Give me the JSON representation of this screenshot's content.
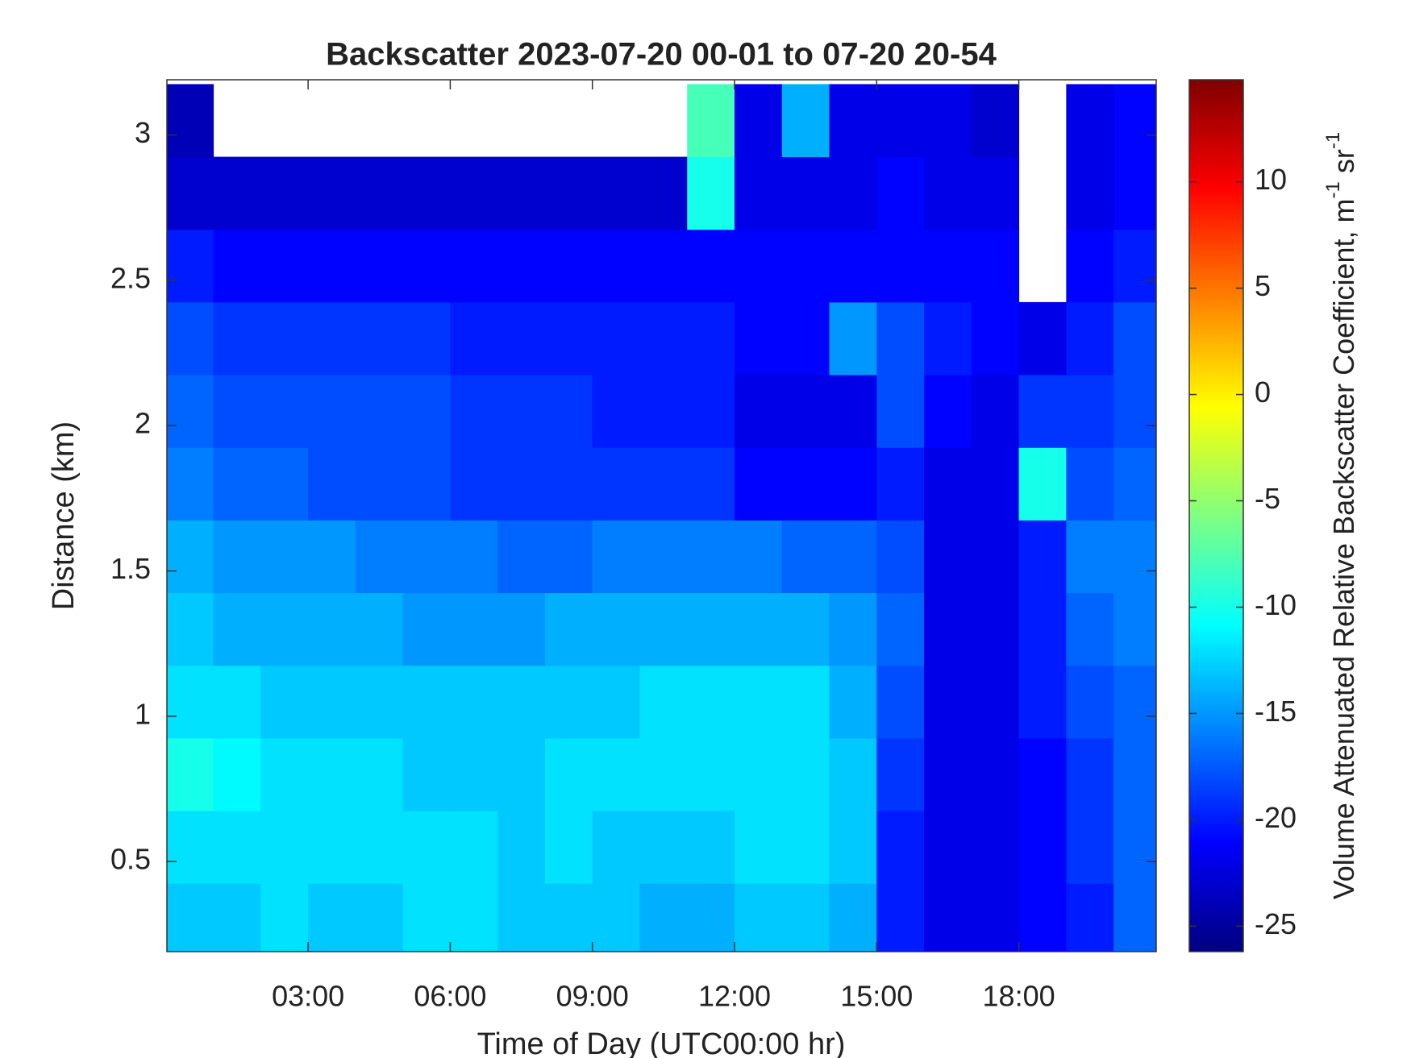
{
  "chart_data": {
    "type": "heatmap",
    "title": "Backscatter 2023-07-20 00-01 to 07-20 20-54",
    "x_label": "Time of Day (UTC00:00 hr)",
    "y_label": "Distance (km)",
    "colorbar_label": [
      "Volume Attenuated Relative Backscatter Coefficient, m",
      "-1",
      " sr",
      "-1"
    ],
    "colormap": "jet",
    "xlim": [
      0.02,
      20.9
    ],
    "ylim": [
      0.19,
      3.19
    ],
    "clim": [
      -26.2,
      14.8
    ],
    "xticks": [
      {
        "value": 3,
        "label": "03:00"
      },
      {
        "value": 6,
        "label": "06:00"
      },
      {
        "value": 9,
        "label": "09:00"
      },
      {
        "value": 12,
        "label": "12:00"
      },
      {
        "value": 15,
        "label": "15:00"
      },
      {
        "value": 18,
        "label": "18:00"
      }
    ],
    "yticks": [
      0.5,
      1,
      1.5,
      2,
      2.5,
      3
    ],
    "cticks": [
      -25,
      -20,
      -15,
      -10,
      -5,
      0,
      5,
      10
    ],
    "x": [
      0.5,
      1.5,
      2.5,
      3.5,
      4.5,
      5.5,
      6.5,
      7.5,
      8.5,
      9.5,
      10.5,
      11.5,
      12.5,
      13.5,
      14.5,
      15.5,
      16.5,
      17.5,
      18.5,
      19.5,
      20.5
    ],
    "y": [
      0.3,
      0.55,
      0.8,
      1.05,
      1.3,
      1.55,
      1.8,
      2.05,
      2.3,
      2.55,
      2.8,
      3.05
    ],
    "values": [
      [
        -13,
        -13,
        -12,
        -13,
        -13,
        -12,
        -12,
        -13,
        -13,
        -13,
        -14,
        -14,
        -13,
        -13,
        -14,
        -20,
        -22,
        -22,
        -21,
        -20,
        -17
      ],
      [
        -12,
        -12,
        -12,
        -12,
        -12,
        -12,
        -12,
        -13,
        -12,
        -13,
        -13,
        -13,
        -12,
        -12,
        -13,
        -20,
        -22,
        -22,
        -21,
        -19,
        -17
      ],
      [
        -10,
        -11,
        -12,
        -12,
        -12,
        -13,
        -13,
        -13,
        -12,
        -12,
        -12,
        -12,
        -12,
        -12,
        -13,
        -19,
        -22,
        -22,
        -21,
        -19,
        -17
      ],
      [
        -12,
        -12,
        -13,
        -13,
        -13,
        -13,
        -13,
        -13,
        -13,
        -13,
        -12,
        -12,
        -12,
        -12,
        -14,
        -18,
        -22,
        -22,
        -20,
        -18,
        -17
      ],
      [
        -13,
        -14,
        -14,
        -14,
        -14,
        -15,
        -15,
        -15,
        -14,
        -14,
        -14,
        -14,
        -14,
        -14,
        -15,
        -17,
        -22,
        -22,
        -20,
        -17,
        -16
      ],
      [
        -14,
        -15,
        -15,
        -15,
        -16,
        -16,
        -16,
        -17,
        -17,
        -16,
        -16,
        -16,
        -16,
        -17,
        -17,
        -18,
        -22,
        -22,
        -20,
        -16,
        -16
      ],
      [
        -16,
        -17,
        -17,
        -18,
        -18,
        -18,
        -19,
        -19,
        -19,
        -19,
        -19,
        -19,
        -21,
        -21,
        -21,
        -20,
        -22,
        -22,
        -10,
        -18,
        -17
      ],
      [
        -17,
        -18,
        -18,
        -18,
        -18,
        -18,
        -19,
        -19,
        -19,
        -20,
        -20,
        -20,
        -22,
        -22,
        -22,
        -18,
        -21,
        -22,
        -19,
        -19,
        -18
      ],
      [
        -18,
        -19,
        -19,
        -19,
        -19,
        -19,
        -20,
        -20,
        -20,
        -20,
        -20,
        -20,
        -21,
        -21,
        -15,
        -18,
        -20,
        -21,
        -22,
        -20,
        -18
      ],
      [
        -20,
        -21,
        -21,
        -21,
        -21,
        -21,
        -21,
        -21,
        -21,
        -21,
        -21,
        -21,
        -21,
        -21,
        -21,
        -21,
        -21,
        -21,
        null,
        -21,
        -20
      ],
      [
        -23,
        -23,
        -23,
        -23,
        -23,
        -23,
        -23,
        -23,
        -23,
        -23,
        -23,
        -10,
        -22,
        -22,
        -22,
        -21,
        -22,
        -22,
        null,
        -22,
        -21
      ],
      [
        -24,
        null,
        null,
        null,
        null,
        null,
        null,
        null,
        null,
        null,
        null,
        -8,
        -22,
        -14,
        -22,
        -22,
        -22,
        -23,
        null,
        -22,
        -21
      ]
    ]
  }
}
